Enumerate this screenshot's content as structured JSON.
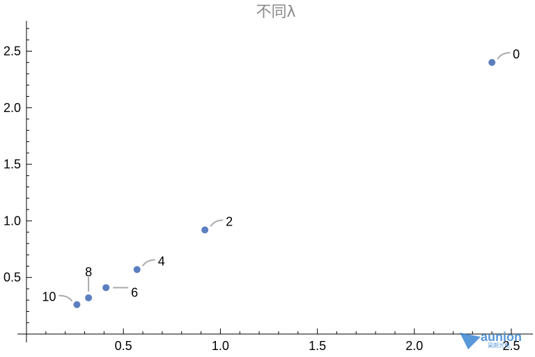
{
  "chart_data": {
    "type": "scatter",
    "title": "不同λ",
    "xlabel": "",
    "ylabel": "",
    "xlim": [
      0,
      2.6
    ],
    "ylim": [
      0,
      2.75
    ],
    "x_ticks": [
      "0.5",
      "1.0",
      "1.5",
      "2.0",
      "2.5"
    ],
    "y_ticks": [
      "0.5",
      "1.0",
      "1.5",
      "2.0",
      "2.5"
    ],
    "grid": false,
    "point_color": "#5b7fbf",
    "points": [
      {
        "label": "0",
        "x": 2.4,
        "y": 2.4
      },
      {
        "label": "2",
        "x": 0.92,
        "y": 0.92
      },
      {
        "label": "4",
        "x": 0.57,
        "y": 0.57
      },
      {
        "label": "6",
        "x": 0.41,
        "y": 0.41
      },
      {
        "label": "8",
        "x": 0.32,
        "y": 0.32
      },
      {
        "label": "10",
        "x": 0.26,
        "y": 0.26
      }
    ]
  },
  "watermark": {
    "text": "aunion",
    "subtext": "昊朗光电",
    "color": "#2f7fd0"
  }
}
